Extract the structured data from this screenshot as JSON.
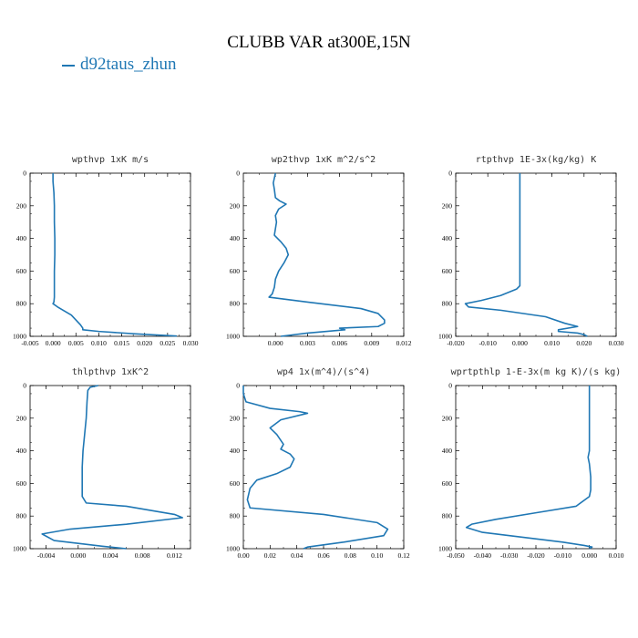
{
  "figure": {
    "title": "CLUBB VAR at300E,15N",
    "legend_label": "d92taus_zhun",
    "series_color": "#1f77b4"
  },
  "chart_data": [
    {
      "type": "line",
      "title": "wpthvp  1xK m/s",
      "xlim": [
        -0.005,
        0.03
      ],
      "xticks": [
        -0.005,
        0.0,
        0.005,
        0.01,
        0.015,
        0.02,
        0.025,
        0.03
      ],
      "xtick_labels": [
        "-0.005",
        "0.000",
        "0.005",
        "0.010",
        "0.015",
        "0.020",
        "0.025",
        "0.030"
      ],
      "ylim": [
        1000,
        0
      ],
      "yticks": [
        0,
        200,
        400,
        600,
        800,
        1000
      ],
      "series": [
        {
          "x": [
            0.0,
            0.0,
            0.0002,
            0.0003,
            0.0003,
            0.0004,
            0.0004,
            0.0003,
            0.0003,
            0.0003,
            0.0002,
            0.0,
            0.001,
            0.004,
            0.006,
            0.0065,
            0.0065,
            0.01,
            0.018,
            0.027
          ],
          "y": [
            0,
            50,
            120,
            200,
            300,
            400,
            500,
            600,
            700,
            760,
            790,
            800,
            820,
            870,
            930,
            950,
            960,
            970,
            985,
            998
          ]
        }
      ]
    },
    {
      "type": "line",
      "title": "wp2thvp  1xK m^2/s^2",
      "xlim": [
        -0.003,
        0.012
      ],
      "xticks": [
        0.0,
        0.003,
        0.006,
        0.009,
        0.012
      ],
      "xtick_labels": [
        "0.000",
        "0.003",
        "0.006",
        "0.009",
        "0.012"
      ],
      "ylim": [
        1000,
        0
      ],
      "yticks": [
        0,
        200,
        400,
        600,
        800,
        1000
      ],
      "series": [
        {
          "x": [
            0.0,
            -0.0002,
            -0.0001,
            0.0,
            0.0004,
            0.001,
            0.0003,
            0.0,
            0.0001,
            0.0,
            -0.0001,
            0.0005,
            0.001,
            0.0012,
            0.0008,
            0.0003,
            0.0,
            -0.0001,
            -0.0003,
            -0.0006,
            0.003,
            0.008,
            0.0096,
            0.0102,
            0.0102,
            0.0096,
            0.006,
            0.0065,
            0.003,
            0.0005
          ],
          "y": [
            0,
            60,
            100,
            150,
            170,
            190,
            220,
            260,
            300,
            340,
            380,
            420,
            460,
            500,
            550,
            600,
            650,
            700,
            740,
            760,
            790,
            830,
            860,
            900,
            920,
            940,
            950,
            960,
            980,
            1000
          ]
        }
      ]
    },
    {
      "type": "line",
      "title": "rtpthvp  1E-3x(kg/kg) K",
      "xlim": [
        -0.02,
        0.03
      ],
      "xticks": [
        -0.02,
        -0.01,
        0.0,
        0.01,
        0.02,
        0.03
      ],
      "xtick_labels": [
        "-0.020",
        "-0.010",
        "0.000",
        "0.010",
        "0.020",
        "0.030"
      ],
      "ylim": [
        1000,
        0
      ],
      "yticks": [
        0,
        200,
        400,
        600,
        800,
        1000
      ],
      "series": [
        {
          "x": [
            0.0,
            0.0,
            0.0,
            0.0,
            0.0,
            0.0,
            -0.001,
            -0.006,
            -0.012,
            -0.017,
            -0.016,
            -0.006,
            0.008,
            0.014,
            0.018,
            0.012,
            0.012,
            0.018,
            0.02,
            0.021
          ],
          "y": [
            0,
            200,
            400,
            600,
            650,
            690,
            710,
            750,
            780,
            800,
            820,
            840,
            880,
            920,
            940,
            960,
            970,
            980,
            990,
            1000
          ]
        }
      ]
    },
    {
      "type": "line",
      "title": "thlpthvp  1xK^2",
      "xlim": [
        -0.006,
        0.014
      ],
      "xticks": [
        -0.004,
        0.0,
        0.004,
        0.008,
        0.012
      ],
      "xtick_labels": [
        "-0.004",
        "0.000",
        "0.004",
        "0.008",
        "0.012"
      ],
      "ylim": [
        1000,
        0
      ],
      "yticks": [
        0,
        200,
        400,
        600,
        800,
        1000
      ],
      "series": [
        {
          "x": [
            0.0025,
            0.0015,
            0.0012,
            0.0011,
            0.001,
            0.0008,
            0.0006,
            0.0005,
            0.0005,
            0.0005,
            0.001,
            0.006,
            0.012,
            0.013,
            0.006,
            -0.001,
            -0.0045,
            -0.003,
            0.003,
            0.006
          ],
          "y": [
            0,
            10,
            30,
            100,
            200,
            300,
            400,
            500,
            600,
            680,
            720,
            740,
            790,
            810,
            850,
            880,
            910,
            950,
            985,
            1000
          ]
        }
      ]
    },
    {
      "type": "line",
      "title": "wp4  1x(m^4)/(s^4)",
      "xlim": [
        0.0,
        0.12
      ],
      "xticks": [
        0.0,
        0.02,
        0.04,
        0.06,
        0.08,
        0.1,
        0.12
      ],
      "xtick_labels": [
        "0.00",
        "0.02",
        "0.04",
        "0.06",
        "0.08",
        "0.10",
        "0.12"
      ],
      "ylim": [
        1000,
        0
      ],
      "yticks": [
        0,
        200,
        400,
        600,
        800,
        1000
      ],
      "series": [
        {
          "x": [
            0.0,
            0.0,
            0.002,
            0.02,
            0.042,
            0.048,
            0.028,
            0.02,
            0.025,
            0.03,
            0.028,
            0.035,
            0.038,
            0.035,
            0.025,
            0.01,
            0.005,
            0.003,
            0.005,
            0.06,
            0.1,
            0.108,
            0.105,
            0.075,
            0.048,
            0.045
          ],
          "y": [
            0,
            50,
            100,
            140,
            160,
            170,
            210,
            260,
            300,
            360,
            390,
            420,
            450,
            500,
            540,
            580,
            630,
            700,
            750,
            790,
            840,
            880,
            920,
            960,
            990,
            1000
          ]
        }
      ]
    },
    {
      "type": "line",
      "title": "wprtpthlp  1-E-3x(m kg K)/(s kg)",
      "xlim": [
        -0.05,
        0.01
      ],
      "xticks": [
        -0.05,
        -0.04,
        -0.03,
        -0.02,
        -0.01,
        0.0,
        0.01
      ],
      "xtick_labels": [
        "-0.050",
        "-0.040",
        "-0.030",
        "-0.020",
        "-0.010",
        "0.000",
        "0.010"
      ],
      "ylim": [
        1000,
        0
      ],
      "yticks": [
        0,
        200,
        400,
        600,
        800,
        1000
      ],
      "series": [
        {
          "x": [
            0.0,
            0.0,
            0.0,
            -0.0005,
            0.0,
            0.0005,
            0.0005,
            0.0,
            -0.005,
            -0.02,
            -0.035,
            -0.044,
            -0.046,
            -0.04,
            -0.025,
            -0.01,
            -0.002,
            0.001,
            0.0
          ],
          "y": [
            0,
            200,
            400,
            440,
            480,
            560,
            640,
            680,
            740,
            780,
            820,
            850,
            870,
            900,
            930,
            960,
            980,
            990,
            1000
          ]
        }
      ]
    }
  ]
}
